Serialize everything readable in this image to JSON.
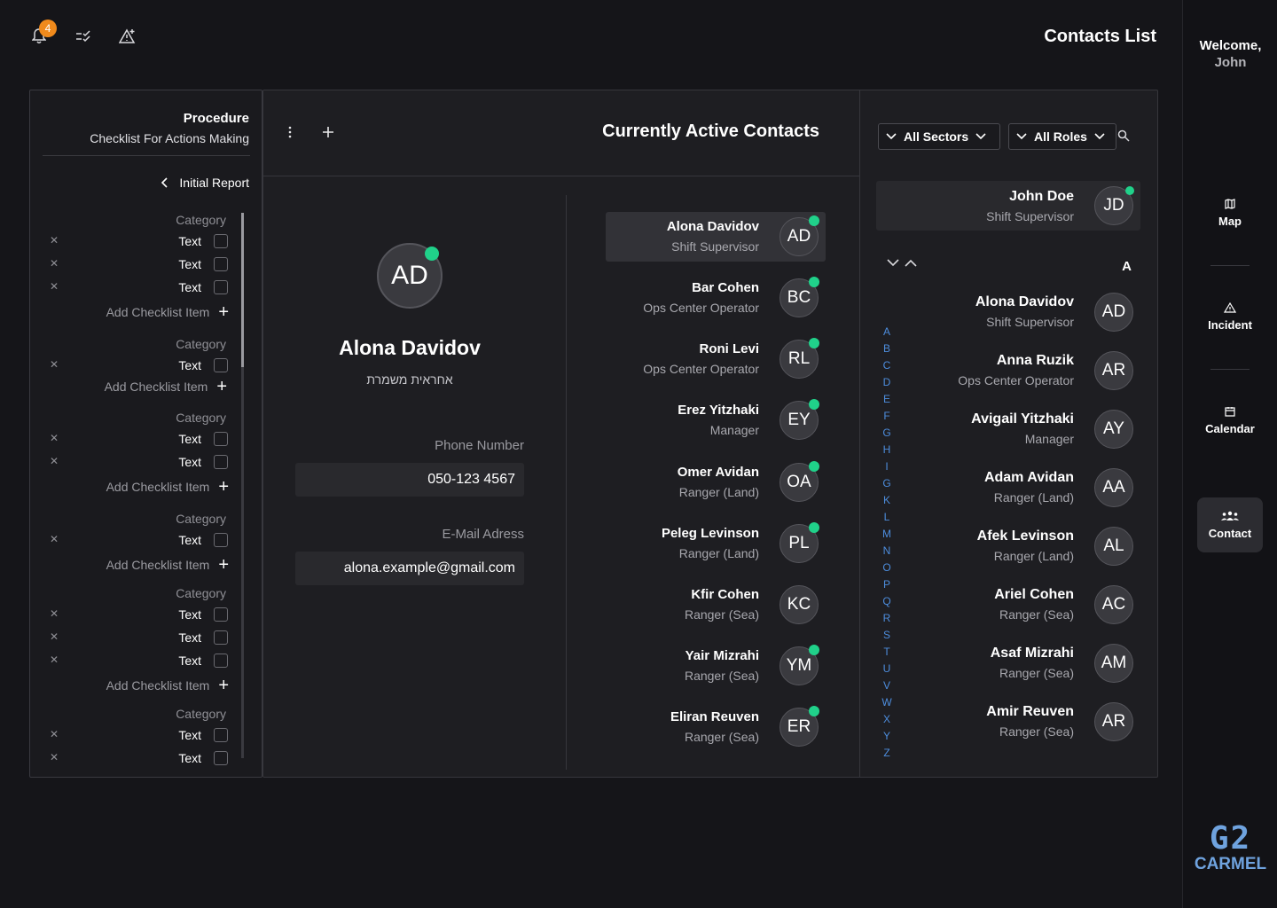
{
  "topbar": {
    "notification_count": "4",
    "page_title": "Contacts List"
  },
  "rail": {
    "welcome_line1": "Welcome,",
    "welcome_line2": "John",
    "items": [
      {
        "label": "Map",
        "icon": "map-icon"
      },
      {
        "label": "Incident",
        "icon": "warning-icon"
      },
      {
        "label": "Calendar",
        "icon": "calendar-icon"
      },
      {
        "label": "Contact",
        "icon": "people-icon",
        "active": true
      }
    ],
    "logo_top": "G2",
    "logo_bottom": "CARMEL"
  },
  "procedure": {
    "title": "Procedure",
    "subtitle": "Checklist For Actions Making",
    "back_label": "Initial Report",
    "category_label": "Category",
    "item_label": "Text",
    "add_label": "Add Checklist Item",
    "groups": [
      {
        "category": "Category",
        "items": [
          "Text",
          "Text",
          "Text"
        ],
        "add": "Add Checklist Item"
      },
      {
        "category": "Category",
        "items": [
          "Text"
        ],
        "add": "Add Checklist Item"
      },
      {
        "category": "Category",
        "items": [
          "Text",
          "Text"
        ],
        "add": "Add Checklist Item"
      },
      {
        "category": "Category",
        "items": [
          "Text"
        ],
        "add": "Add Checklist Item"
      },
      {
        "category": "Category",
        "items": [
          "Text",
          "Text",
          "Text"
        ],
        "add": "Add Checklist Item"
      },
      {
        "category": "Category",
        "items": [
          "Text",
          "Text"
        ],
        "add": ""
      }
    ]
  },
  "active": {
    "title": "Currently Active Contacts",
    "selected": {
      "initials": "AD",
      "name": "Alona Davidov",
      "role_he": "אחראית משמרת",
      "phone_label": "Phone Number",
      "phone": "050-123 4567",
      "email_label": "E-Mail Adress",
      "email": "alona.example@gmail.com"
    },
    "contacts": [
      {
        "name": "Alona Davidov",
        "role": "Shift Supervisor",
        "initials": "AD",
        "selected": true
      },
      {
        "name": "Bar Cohen",
        "role": "Ops Center Operator",
        "initials": "BC"
      },
      {
        "name": "Roni Levi",
        "role": "Ops Center Operator",
        "initials": "RL"
      },
      {
        "name": "Erez Yitzhaki",
        "role": "Manager",
        "initials": "EY"
      },
      {
        "name": "Omer Avidan",
        "role": "Ranger (Land)",
        "initials": "OA"
      },
      {
        "name": "Peleg Levinson",
        "role": "Ranger (Land)",
        "initials": "PL"
      },
      {
        "name": "Kfir Cohen",
        "role": "Ranger (Sea)",
        "initials": "KC"
      },
      {
        "name": "Yair Mizrahi",
        "role": "Ranger (Sea)",
        "initials": "YM"
      },
      {
        "name": "Eliran Reuven",
        "role": "Ranger (Sea)",
        "initials": "ER"
      }
    ]
  },
  "directory": {
    "filter_sectors": "All Sectors",
    "filter_roles": "All Roles",
    "me": {
      "name": "John Doe",
      "role": "Shift Supervisor",
      "initials": "JD"
    },
    "letter_heading": "A",
    "alphabet": [
      "A",
      "B",
      "C",
      "D",
      "E",
      "F",
      "G",
      "H",
      "I",
      "G",
      "K",
      "L",
      "M",
      "N",
      "O",
      "P",
      "Q",
      "R",
      "S",
      "T",
      "U",
      "V",
      "W",
      "X",
      "Y",
      "Z"
    ],
    "contacts": [
      {
        "name": "Alona Davidov",
        "role": "Shift Supervisor",
        "initials": "AD"
      },
      {
        "name": "Anna Ruzik",
        "role": "Ops Center Operator",
        "initials": "AR"
      },
      {
        "name": "Avigail Yitzhaki",
        "role": "Manager",
        "initials": "AY"
      },
      {
        "name": "Adam Avidan",
        "role": "Ranger (Land)",
        "initials": "AA"
      },
      {
        "name": "Afek Levinson",
        "role": "Ranger (Land)",
        "initials": "AL"
      },
      {
        "name": "Ariel Cohen",
        "role": "Ranger (Sea)",
        "initials": "AC"
      },
      {
        "name": "Asaf Mizrahi",
        "role": "Ranger (Sea)",
        "initials": "AM"
      },
      {
        "name": "Amir Reuven",
        "role": "Ranger (Sea)",
        "initials": "AR"
      }
    ]
  },
  "colors": {
    "online": "#20d18a",
    "badge": "#f08a1c",
    "alphabet": "#4d8ddd",
    "logo": "#6fa3df"
  }
}
